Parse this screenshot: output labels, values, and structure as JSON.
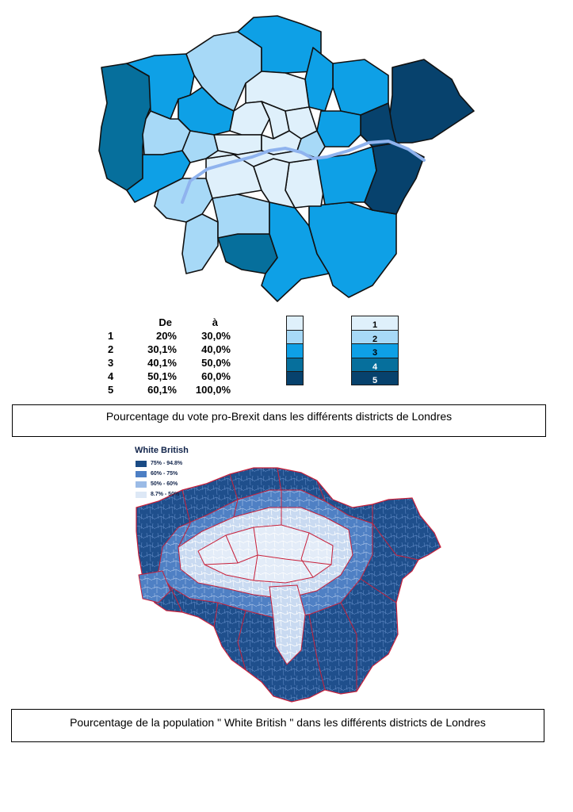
{
  "brexit_map": {
    "legend": {
      "header_from": "De",
      "header_to": "à",
      "rows": [
        {
          "num": "1",
          "from": "20%",
          "to": "30,0%"
        },
        {
          "num": "2",
          "from": "30,1%",
          "to": "40,0%"
        },
        {
          "num": "3",
          "from": "40,1%",
          "to": "50,0%"
        },
        {
          "num": "4",
          "from": "50,1%",
          "to": "60,0%"
        },
        {
          "num": "5",
          "from": "60,1%",
          "to": "100,0%"
        }
      ],
      "colors": [
        "#dff0fb",
        "#a7d9f7",
        "#0ea0e6",
        "#066f9c",
        "#07426d"
      ],
      "swatch_labels": [
        "1",
        "2",
        "3",
        "4",
        "5"
      ]
    },
    "river_color": "#8fb3ee",
    "caption": "Pourcentage du vote pro-Brexit dans les différents districts de Londres"
  },
  "white_british_map": {
    "title": "White British",
    "legend": [
      {
        "label": "75% - 94.8%",
        "color": "#1a4b85"
      },
      {
        "label": "60% - 75%",
        "color": "#4d7fc4"
      },
      {
        "label": "50% - 60%",
        "color": "#9bbbe6"
      },
      {
        "label": "8.7% - 50%",
        "color": "#dde8f6"
      }
    ],
    "boundary_color": "#c8203a",
    "caption": "Pourcentage de la population \" White British \"  dans les différents districts de Londres"
  }
}
